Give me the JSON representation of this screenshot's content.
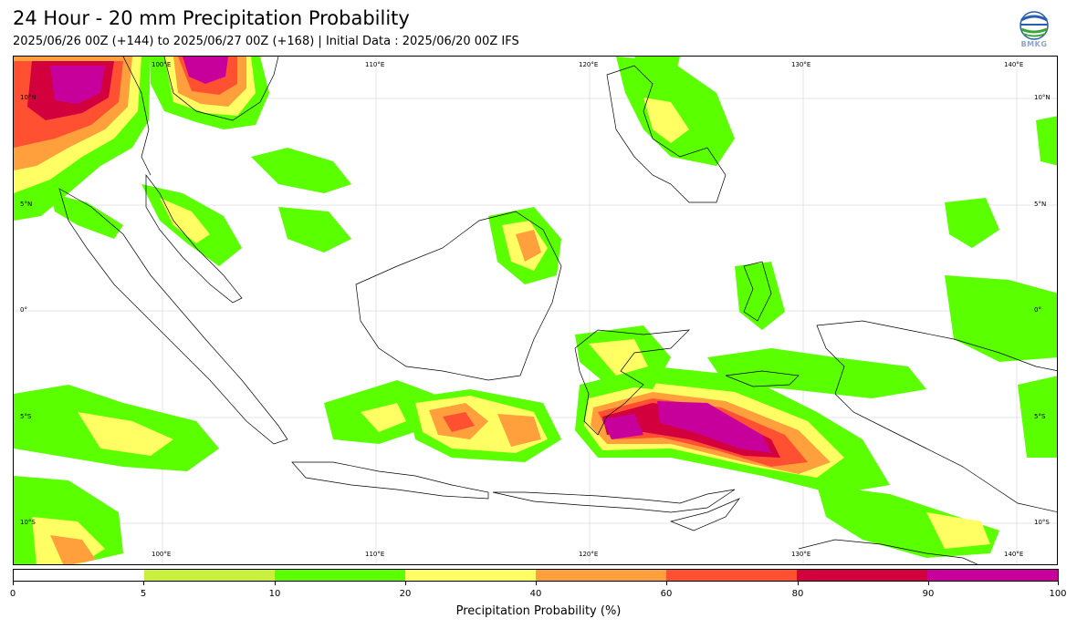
{
  "header": {
    "title": "24 Hour - 20 mm Precipitation Probability",
    "subtitle": "2025/06/26 00Z (+144) to 2025/06/27 00Z (+168) | Initial Data : 2025/06/20 00Z IFS",
    "logo_text": "BMKG"
  },
  "map": {
    "lon_labels_top": [
      "100°E",
      "110°E",
      "120°E",
      "130°E",
      "140°E"
    ],
    "lon_labels_bottom": [
      "100°E",
      "110°E",
      "120°E",
      "130°E",
      "140°E"
    ],
    "lat_labels_left": [
      "10°N",
      "5°N",
      "0°",
      "5°S",
      "10°S"
    ],
    "lat_labels_right": [
      "10°N",
      "5°N",
      "0°",
      "5°S",
      "10°S"
    ],
    "extent": {
      "lon_min": 94,
      "lon_max": 143,
      "lat_min": -12,
      "lat_max": 12
    }
  },
  "legend": {
    "label": "Precipitation Probability (%)",
    "ticks": [
      "0",
      "5",
      "10",
      "20",
      "40",
      "60",
      "80",
      "90",
      "100"
    ],
    "colors": [
      "#ffffff",
      "#c8f03c",
      "#5aff00",
      "#ffff64",
      "#ffa03c",
      "#ff5032",
      "#d2003c",
      "#c8009b"
    ]
  },
  "colors": {
    "low": "#c8f03c",
    "green": "#5aff00",
    "yellow": "#ffff64",
    "orange": "#ffa03c",
    "red": "#ff5032",
    "crimson": "#d2003c",
    "magenta": "#c8009b"
  }
}
